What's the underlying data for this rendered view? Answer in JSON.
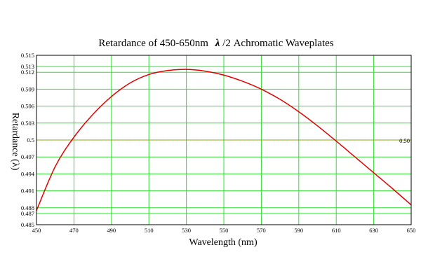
{
  "chart_data": {
    "type": "line",
    "title": {
      "prefix": "Retardance of 450-650nm",
      "symbol": "λ",
      "suffix": "/2 Achromatic Waveplates"
    },
    "xlabel": "Wavelength (nm)",
    "ylabel": "Retardance (λ)",
    "xlim": [
      450,
      650
    ],
    "ylim": [
      0.485,
      0.515
    ],
    "x_ticks": [
      450,
      470,
      490,
      510,
      530,
      550,
      570,
      590,
      610,
      630,
      650
    ],
    "y_ticks": [
      0.485,
      0.487,
      0.488,
      0.491,
      0.494,
      0.497,
      0.5,
      0.503,
      0.506,
      0.509,
      0.512,
      0.513,
      0.515
    ],
    "y_tick_labels": [
      "0.485",
      "0.487",
      "0.488",
      "0.491",
      "0.494",
      "0.497",
      "0.5",
      "0.503",
      "0.506",
      "0.509",
      "0.512",
      "0.513",
      "0.515"
    ],
    "grid": true,
    "grid_color": "#33dd33",
    "series": [
      {
        "color": "#e00000",
        "x": [
          450,
          460,
          470,
          480,
          490,
          500,
          510,
          520,
          530,
          540,
          550,
          560,
          570,
          580,
          590,
          600,
          610,
          620,
          630,
          640,
          650
        ],
        "y": [
          0.4875,
          0.4953,
          0.5005,
          0.5045,
          0.5077,
          0.5101,
          0.5116,
          0.5123,
          0.5125,
          0.5122,
          0.5115,
          0.5104,
          0.509,
          0.5072,
          0.505,
          0.5025,
          0.4998,
          0.497,
          0.4942,
          0.4914,
          0.4885
        ]
      }
    ],
    "reference_line": {
      "y": 0.5,
      "label": "0.50",
      "color": "#b8860b"
    }
  }
}
